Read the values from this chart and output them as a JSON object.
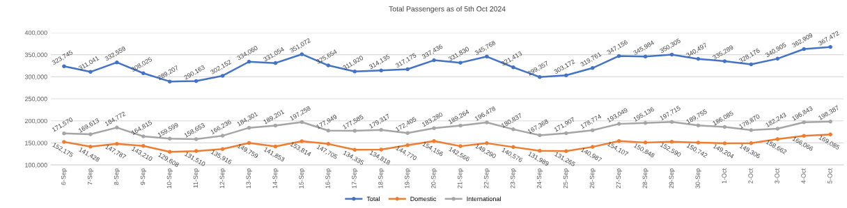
{
  "chart_data": {
    "type": "line",
    "title": "Total Passengers as of 5th Oct 2024",
    "categories": [
      "6-Sep",
      "7-Sep",
      "8-Sep",
      "9-Sep",
      "10-Sep",
      "11-Sep",
      "12-Sep",
      "13-Sep",
      "14-Sep",
      "15-Sep",
      "16-Sep",
      "17-Sep",
      "18-Sep",
      "19-Sep",
      "20-Sep",
      "21-Sep",
      "22-Sep",
      "23-Sep",
      "24-Sep",
      "25-Sep",
      "26-Sep",
      "27-Sep",
      "28-Sep",
      "29-Sep",
      "30-Sep",
      "1-Oct",
      "2-Oct",
      "3-Oct",
      "4-Oct",
      "5-Oct"
    ],
    "series": [
      {
        "name": "Total",
        "color": "#4472c4",
        "values": [
          323745,
          311041,
          332559,
          308025,
          289207,
          290163,
          302152,
          334060,
          331054,
          351072,
          325654,
          311920,
          314135,
          317175,
          337436,
          331830,
          345768,
          321413,
          299357,
          303172,
          319761,
          347156,
          345984,
          350305,
          340497,
          335289,
          328176,
          340905,
          362909,
          367472
        ],
        "value_labels": [
          "323,745",
          "311,041",
          "332,559",
          "308,025",
          "289,207",
          "290,163",
          "302,152",
          "334,060",
          "331,054",
          "351,072",
          "325,654",
          "311,920",
          "314,135",
          "317,175",
          "337,436",
          "331,830",
          "345,768",
          "321,413",
          "299,357",
          "303,172",
          "319,761",
          "347,156",
          "345,984",
          "350,305",
          "340,497",
          "335,289",
          "328,176",
          "340,905",
          "362,909",
          "367,472"
        ]
      },
      {
        "name": "Domestic",
        "color": "#ed7d31",
        "values": [
          152175,
          141428,
          147787,
          143210,
          129608,
          131510,
          135916,
          149759,
          141853,
          153814,
          147705,
          134335,
          134818,
          144770,
          154156,
          142566,
          149290,
          140576,
          131989,
          131265,
          140987,
          154107,
          150848,
          152590,
          150742,
          149204,
          149306,
          158662,
          166066,
          169085
        ],
        "value_labels": [
          "152,175",
          "141,428",
          "147,787",
          "143,210",
          "129,608",
          "131,510",
          "135,916",
          "149,759",
          "141,853",
          "153,814",
          "147,705",
          "134,335",
          "134,818",
          "144,770",
          "154,156",
          "142,566",
          "149,290",
          "140,576",
          "131,989",
          "131,265",
          "140,987",
          "154,107",
          "150,848",
          "152,590",
          "150,742",
          "149,204",
          "149,306",
          "158,662",
          "166,066",
          "169,085"
        ]
      },
      {
        "name": "International",
        "color": "#a5a5a5",
        "values": [
          171570,
          169613,
          184772,
          164815,
          159599,
          158653,
          166236,
          184301,
          189201,
          197258,
          177949,
          177585,
          179317,
          172405,
          183280,
          189264,
          196478,
          180837,
          167368,
          171907,
          178774,
          193049,
          195136,
          197715,
          189755,
          186085,
          178870,
          182243,
          196843,
          198387
        ],
        "value_labels": [
          "171,570",
          "169,613",
          "184,772",
          "164,815",
          "159,599",
          "158,653",
          "166,236",
          "184,301",
          "189,201",
          "197,258",
          "177,949",
          "177,585",
          "179,317",
          "172,405",
          "183,280",
          "189,264",
          "196,478",
          "180,837",
          "167,368",
          "171,907",
          "178,774",
          "193,049",
          "195,136",
          "197,715",
          "189,755",
          "186,085",
          "178,870",
          "182,243",
          "196,843",
          "198,387"
        ]
      }
    ],
    "ylim": [
      100000,
      400000
    ],
    "yticks": [
      {
        "value": 100000,
        "label": "100,000"
      },
      {
        "value": 150000,
        "label": "150,000"
      },
      {
        "value": 200000,
        "label": "200,000"
      },
      {
        "value": 250000,
        "label": "250,000"
      },
      {
        "value": 300000,
        "label": "300,000"
      },
      {
        "value": 350000,
        "label": "350,000"
      },
      {
        "value": 400000,
        "label": "400,000"
      }
    ],
    "grid": "y",
    "legend": "bottom",
    "marker": "circle",
    "line_style": "solid"
  }
}
